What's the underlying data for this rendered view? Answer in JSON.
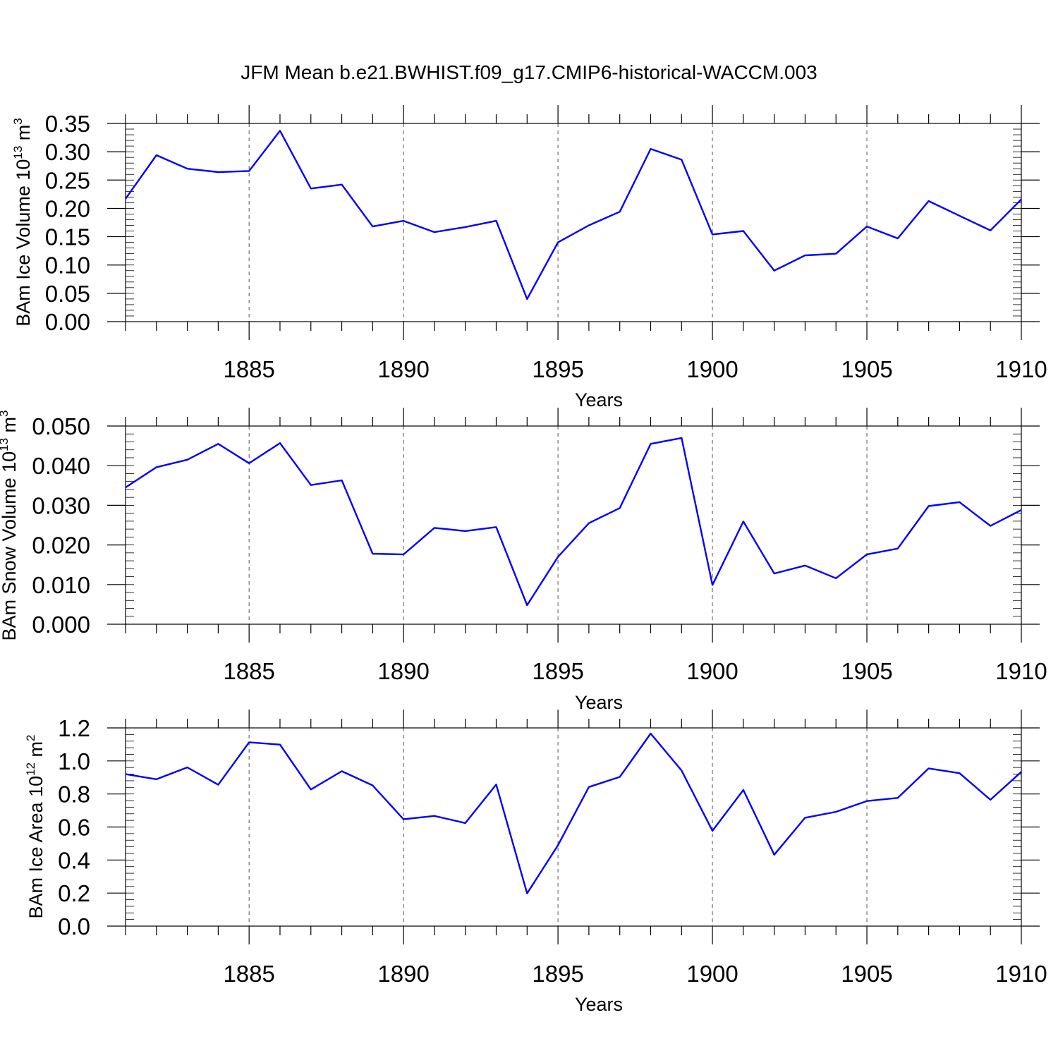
{
  "title": "JFM Mean b.e21.BWHIST.f09_g17.CMIP6-historical-WACCM.003",
  "chart_data": [
    {
      "type": "line",
      "xlabel": "Years",
      "ylabel": {
        "main": "BAm Ice Volume 10",
        "exp": "13",
        "unit": " m",
        "unit_exp": "3"
      },
      "xlim": [
        1881,
        1910
      ],
      "ylim": [
        0,
        0.35
      ],
      "y_ticks": [
        0.0,
        0.05,
        0.1,
        0.15,
        0.2,
        0.25,
        0.3,
        0.35
      ],
      "y_tick_labels": [
        "0.00",
        "0.05",
        "0.10",
        "0.15",
        "0.20",
        "0.25",
        "0.30",
        "0.35"
      ],
      "y_minor_step": 0.01,
      "x_ticks": [
        1885,
        1890,
        1895,
        1900,
        1905,
        1910
      ],
      "x_tick_labels": [
        "1885",
        "1890",
        "1895",
        "1900",
        "1905",
        "1910"
      ],
      "grid": "vertical dashed at major x ticks",
      "x": [
        1881,
        1882,
        1883,
        1884,
        1885,
        1886,
        1887,
        1888,
        1889,
        1890,
        1891,
        1892,
        1893,
        1894,
        1895,
        1896,
        1897,
        1898,
        1899,
        1900,
        1901,
        1902,
        1903,
        1904,
        1905,
        1906,
        1907,
        1908,
        1909,
        1910
      ],
      "series": [
        {
          "color": "#0000ff",
          "values": [
            0.217,
            0.294,
            0.27,
            0.264,
            0.266,
            0.337,
            0.235,
            0.242,
            0.168,
            0.178,
            0.158,
            0.167,
            0.178,
            0.04,
            0.14,
            0.17,
            0.194,
            0.305,
            0.286,
            0.154,
            0.16,
            0.09,
            0.117,
            0.12,
            0.168,
            0.147,
            0.213,
            0.187,
            0.161,
            0.216
          ]
        }
      ]
    },
    {
      "type": "line",
      "xlabel": "Years",
      "ylabel": {
        "main": "BAm Snow Volume 10",
        "exp": "13",
        "unit": " m",
        "unit_exp": "3"
      },
      "xlim": [
        1881,
        1910
      ],
      "ylim": [
        0,
        0.05
      ],
      "y_ticks": [
        0.0,
        0.01,
        0.02,
        0.03,
        0.04,
        0.05
      ],
      "y_tick_labels": [
        "0.000",
        "0.010",
        "0.020",
        "0.030",
        "0.040",
        "0.050"
      ],
      "y_minor_step": 0.002,
      "x_ticks": [
        1885,
        1890,
        1895,
        1900,
        1905,
        1910
      ],
      "x_tick_labels": [
        "1885",
        "1890",
        "1895",
        "1900",
        "1905",
        "1910"
      ],
      "grid": "vertical dashed at major x ticks",
      "x": [
        1881,
        1882,
        1883,
        1884,
        1885,
        1886,
        1887,
        1888,
        1889,
        1890,
        1891,
        1892,
        1893,
        1894,
        1895,
        1896,
        1897,
        1898,
        1899,
        1900,
        1901,
        1902,
        1903,
        1904,
        1905,
        1906,
        1907,
        1908,
        1909,
        1910
      ],
      "series": [
        {
          "color": "#0000ff",
          "values": [
            0.0345,
            0.0396,
            0.0415,
            0.0455,
            0.0406,
            0.0457,
            0.0351,
            0.0363,
            0.0178,
            0.0176,
            0.0243,
            0.0235,
            0.0245,
            0.0048,
            0.017,
            0.0255,
            0.0293,
            0.0455,
            0.047,
            0.0099,
            0.0259,
            0.0128,
            0.0148,
            0.0116,
            0.0176,
            0.0191,
            0.0298,
            0.0308,
            0.0248,
            0.0288
          ]
        }
      ]
    },
    {
      "type": "line",
      "xlabel": "Years",
      "ylabel": {
        "main": "BAm Ice Area 10",
        "exp": "12",
        "unit": " m",
        "unit_exp": "2"
      },
      "xlim": [
        1881,
        1910
      ],
      "ylim": [
        0,
        1.2
      ],
      "y_ticks": [
        0.0,
        0.2,
        0.4,
        0.6,
        0.8,
        1.0,
        1.2
      ],
      "y_tick_labels": [
        "0.0",
        "0.2",
        "0.4",
        "0.6",
        "0.8",
        "1.0",
        "1.2"
      ],
      "y_minor_step": 0.04,
      "x_ticks": [
        1885,
        1890,
        1895,
        1900,
        1905,
        1910
      ],
      "x_tick_labels": [
        "1885",
        "1890",
        "1895",
        "1900",
        "1905",
        "1910"
      ],
      "grid": "vertical dashed at major x ticks",
      "x": [
        1881,
        1882,
        1883,
        1884,
        1885,
        1886,
        1887,
        1888,
        1889,
        1890,
        1891,
        1892,
        1893,
        1894,
        1895,
        1896,
        1897,
        1898,
        1899,
        1900,
        1901,
        1902,
        1903,
        1904,
        1905,
        1906,
        1907,
        1908,
        1909,
        1910
      ],
      "series": [
        {
          "color": "#0000ff",
          "values": [
            0.92,
            0.889,
            0.961,
            0.856,
            1.113,
            1.099,
            0.827,
            0.938,
            0.852,
            0.647,
            0.667,
            0.624,
            0.857,
            0.198,
            0.49,
            0.842,
            0.903,
            1.166,
            0.942,
            0.577,
            0.824,
            0.432,
            0.656,
            0.692,
            0.757,
            0.776,
            0.955,
            0.926,
            0.765,
            0.934
          ]
        }
      ]
    }
  ]
}
